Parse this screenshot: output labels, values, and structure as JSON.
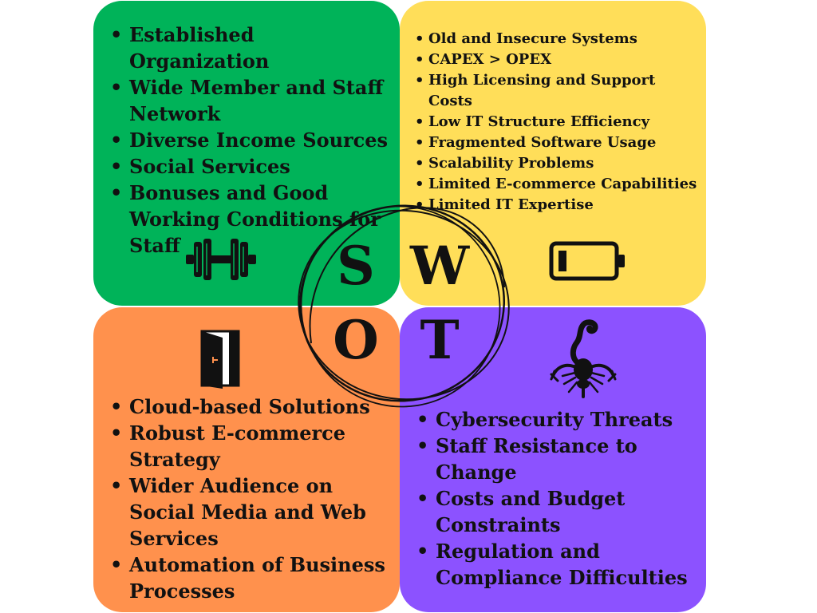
{
  "swot": {
    "colors": {
      "strengths": "#00b359",
      "weaknesses": "#ffde59",
      "opportunities": "#ff914d",
      "threats": "#8c52ff"
    },
    "letters": {
      "s": "S",
      "w": "W",
      "o": "O",
      "t": "T"
    },
    "strengths": {
      "icon": "dumbbell-icon",
      "items": [
        "Established Organization",
        "Wide Member and Staff Network",
        "Diverse Income Sources",
        "Social Services",
        "Bonuses and Good Working Conditions for Staff"
      ]
    },
    "weaknesses": {
      "icon": "low-battery-icon",
      "items": [
        "Old and Insecure Systems",
        "CAPEX > OPEX",
        "High Licensing and Support Costs",
        "Low IT Structure Efficiency",
        "Fragmented Software Usage",
        "Scalability Problems",
        "Limited E-commerce Capabilities",
        "Limited IT Expertise"
      ]
    },
    "opportunities": {
      "icon": "open-door-icon",
      "items": [
        "Cloud-based Solutions",
        "Robust E-commerce Strategy",
        "Wider Audience on Social Media and Web Services",
        "Automation of Business Processes"
      ]
    },
    "threats": {
      "icon": "scorpion-icon",
      "items": [
        "Cybersecurity Threats",
        "Staff Resistance to Change",
        "Costs and Budget Constraints",
        "Regulation and Compliance Difficulties"
      ]
    }
  }
}
